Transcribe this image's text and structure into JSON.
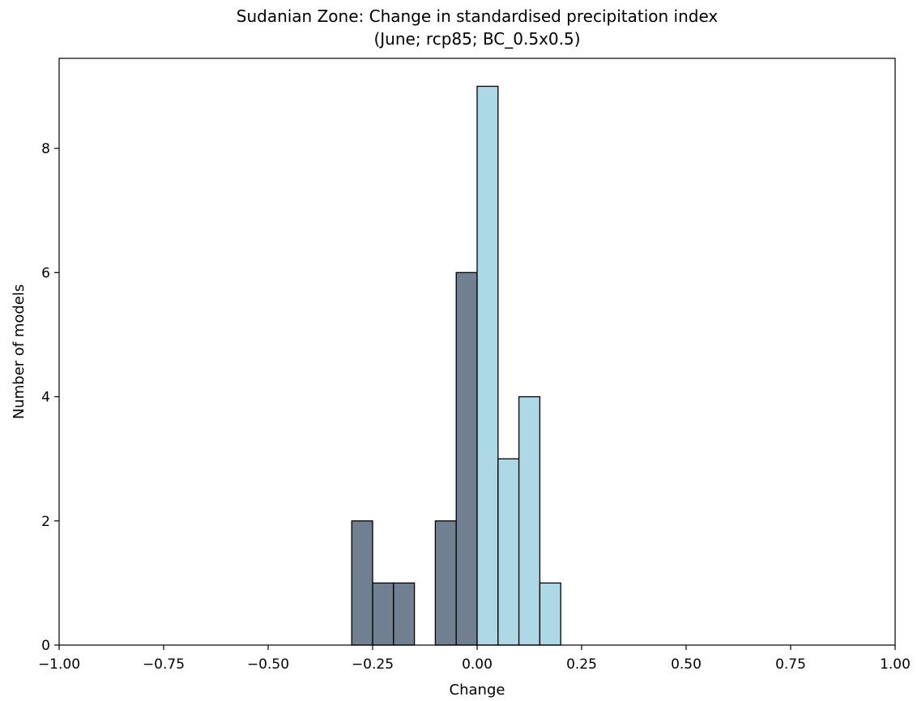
{
  "chart_data": {
    "type": "bar",
    "title": "Sudanian Zone: Change in standardised precipitation index",
    "subtitle": "(June; rcp85; BC_0.5x0.5)",
    "xlabel": "Change",
    "ylabel": "Number of models",
    "xlim": [
      -1.0,
      1.0
    ],
    "ylim": [
      0,
      9.45
    ],
    "grid": false,
    "xticks": [
      -1.0,
      -0.75,
      -0.5,
      -0.25,
      0.0,
      0.25,
      0.5,
      0.75,
      1.0
    ],
    "xtick_labels": [
      "−1.00",
      "−0.75",
      "−0.50",
      "−0.25",
      "0.00",
      "0.25",
      "0.50",
      "0.75",
      "1.00"
    ],
    "yticks": [
      0,
      2,
      4,
      6,
      8
    ],
    "ytick_labels": [
      "0",
      "2",
      "4",
      "6",
      "8"
    ],
    "bin_width": 0.05,
    "series": [
      {
        "color": "#708090",
        "bins": [
          {
            "x0": -0.3,
            "x1": -0.25,
            "value": 2
          },
          {
            "x0": -0.25,
            "x1": -0.2,
            "value": 1
          },
          {
            "x0": -0.2,
            "x1": -0.15,
            "value": 1
          },
          {
            "x0": -0.1,
            "x1": -0.05,
            "value": 2
          },
          {
            "x0": -0.05,
            "x1": 0.0,
            "value": 6
          }
        ]
      },
      {
        "color": "#add8e6",
        "bins": [
          {
            "x0": 0.0,
            "x1": 0.05,
            "value": 9
          },
          {
            "x0": 0.05,
            "x1": 0.1,
            "value": 3
          },
          {
            "x0": 0.1,
            "x1": 0.15,
            "value": 4
          },
          {
            "x0": 0.15,
            "x1": 0.2,
            "value": 1
          },
          {
            "x0": 0.2,
            "x1": 0.25,
            "value": 0
          },
          {
            "x0": 0.25,
            "x1": 0.3,
            "value": 0
          }
        ]
      }
    ]
  }
}
